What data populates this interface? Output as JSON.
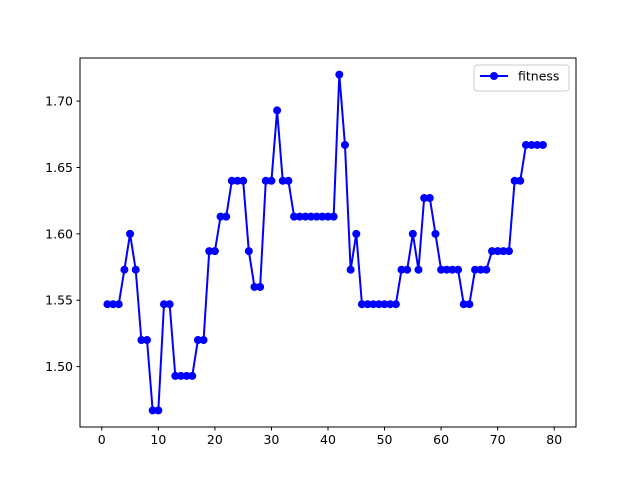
{
  "chart_data": {
    "type": "line",
    "title": "",
    "xlabel": "",
    "ylabel": "",
    "xlim": [
      -3.85,
      83.85
    ],
    "ylim": [
      1.4545,
      1.7325
    ],
    "xticks": [
      0,
      10,
      20,
      30,
      40,
      50,
      60,
      70,
      80
    ],
    "yticks": [
      1.5,
      1.55,
      1.6,
      1.65,
      1.7
    ],
    "xtick_labels": [
      "0",
      "10",
      "20",
      "30",
      "40",
      "50",
      "60",
      "70",
      "80"
    ],
    "ytick_labels": [
      "1.50",
      "1.55",
      "1.60",
      "1.65",
      "1.70"
    ],
    "grid": false,
    "legend_position": "top-right",
    "series": [
      {
        "name": "fitness",
        "color": "#0000ff",
        "marker": "circle",
        "x": [
          1,
          2,
          3,
          4,
          5,
          6,
          7,
          8,
          9,
          10,
          11,
          12,
          13,
          14,
          15,
          16,
          17,
          18,
          19,
          20,
          21,
          22,
          23,
          24,
          25,
          26,
          27,
          28,
          29,
          30,
          31,
          32,
          33,
          34,
          35,
          36,
          37,
          38,
          39,
          40,
          41,
          42,
          43,
          44,
          45,
          46,
          47,
          48,
          49,
          50,
          51,
          52,
          53,
          54,
          55,
          56,
          57,
          58,
          59,
          60,
          61,
          62,
          63,
          64,
          65,
          66,
          67,
          68,
          69,
          70,
          71,
          72,
          73,
          74,
          75,
          76,
          77,
          78
        ],
        "values": [
          1.547,
          1.547,
          1.547,
          1.573,
          1.6,
          1.573,
          1.52,
          1.52,
          1.467,
          1.467,
          1.547,
          1.547,
          1.493,
          1.493,
          1.493,
          1.493,
          1.52,
          1.52,
          1.587,
          1.587,
          1.613,
          1.613,
          1.64,
          1.64,
          1.64,
          1.587,
          1.56,
          1.56,
          1.64,
          1.64,
          1.693,
          1.64,
          1.64,
          1.613,
          1.613,
          1.613,
          1.613,
          1.613,
          1.613,
          1.613,
          1.613,
          1.72,
          1.667,
          1.573,
          1.6,
          1.547,
          1.547,
          1.547,
          1.547,
          1.547,
          1.547,
          1.547,
          1.573,
          1.573,
          1.6,
          1.573,
          1.627,
          1.627,
          1.6,
          1.573,
          1.573,
          1.573,
          1.573,
          1.547,
          1.547,
          1.573,
          1.573,
          1.573,
          1.587,
          1.587,
          1.587,
          1.587,
          1.64,
          1.64,
          1.667,
          1.667,
          1.667,
          1.667
        ]
      }
    ]
  }
}
